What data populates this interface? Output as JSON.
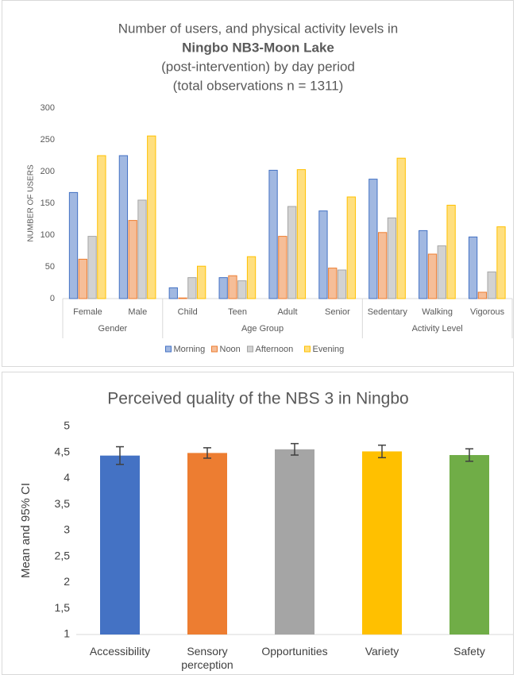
{
  "chart_data": [
    {
      "type": "grouped_bar",
      "title": [
        "Number of users, and physical activity levels in",
        "Ningbo NB3-Moon Lake",
        "(post-intervention) by day period",
        "(total observations n = 1311)"
      ],
      "ylabel": "NUMBER OF USERS",
      "categories": [
        "Female",
        "Male",
        "Child",
        "Teen",
        "Adult",
        "Senior",
        "Sedentary",
        "Walking",
        "Vigorous"
      ],
      "groups": [
        {
          "name": "Gender",
          "size": 2
        },
        {
          "name": "Age Group",
          "size": 4
        },
        {
          "name": "Activity Level",
          "size": 3
        }
      ],
      "series": [
        {
          "name": "Morning",
          "color": "#4472c4",
          "values": [
            167,
            225,
            17,
            33,
            202,
            138,
            188,
            107,
            97
          ]
        },
        {
          "name": "Noon",
          "color": "#ed7d31",
          "values": [
            62,
            123,
            1,
            36,
            98,
            48,
            104,
            70,
            10
          ]
        },
        {
          "name": "Afternoon",
          "color": "#a5a5a5",
          "values": [
            98,
            155,
            33,
            28,
            145,
            45,
            127,
            83,
            42
          ]
        },
        {
          "name": "Evening",
          "color": "#ffc000",
          "values": [
            225,
            256,
            51,
            66,
            203,
            160,
            221,
            147,
            113
          ]
        }
      ],
      "ylim": [
        0,
        300
      ],
      "yticks": [
        0,
        50,
        100,
        150,
        200,
        250,
        300
      ],
      "legend": "bottom"
    },
    {
      "type": "bar_error",
      "title": "Perceived quality of the NBS 3 in Ningbo",
      "ylabel": "Mean and 95% CI",
      "categories": [
        "Accessibility",
        "Sensory perception",
        "Opportunities",
        "Variety",
        "Safety"
      ],
      "values": [
        4.44,
        4.49,
        4.56,
        4.52,
        4.45
      ],
      "errors": [
        0.17,
        0.1,
        0.11,
        0.12,
        0.12
      ],
      "colors": [
        "#4472c4",
        "#ed7d31",
        "#a5a5a5",
        "#ffc000",
        "#70ad47"
      ],
      "ylim": [
        1,
        5
      ],
      "yticks": [
        1,
        {
          "value": 1.5,
          "label": "1,5"
        },
        2,
        {
          "value": 2.5,
          "label": "2,5"
        },
        3,
        {
          "value": 3.5,
          "label": "3,5"
        },
        4,
        {
          "value": 4.5,
          "label": "4,5"
        },
        5
      ],
      "grid": false
    }
  ]
}
